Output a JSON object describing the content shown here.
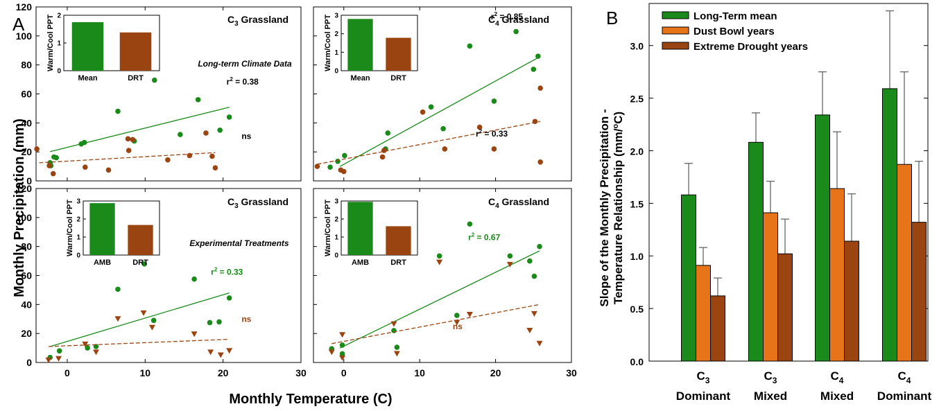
{
  "panel_labels": {
    "a": "A",
    "b": "B"
  },
  "shared_axes": {
    "ylabel": "Monthly Precipitation (mm)",
    "xlabel": "Monthly Temperature (C)"
  },
  "panel_b": {
    "ylabel_line1": "Slope of the Monthly Precipitation -",
    "ylabel_line2": "Temperature Relationship (mm/",
    "ylabel_sup": "o",
    "ylabel_end": "C)",
    "cat_line1": [
      {
        "main": "C",
        "sub": "3"
      },
      {
        "main": "C",
        "sub": "3"
      },
      {
        "main": "C",
        "sub": "4"
      },
      {
        "main": "C",
        "sub": "4"
      }
    ],
    "cat_line2": [
      "Dominant",
      "Mixed",
      "Mixed",
      "Dominant"
    ]
  },
  "chart_data": [
    {
      "id": "a1",
      "type": "scatter",
      "title_main": "C",
      "title_sub": "3",
      "title_rest": " Grassland",
      "note": "Long-term Climate Data",
      "xlim": [
        -4,
        30
      ],
      "ylim": [
        0,
        120
      ],
      "xticks": [
        0,
        10,
        20,
        30
      ],
      "yticks": [
        0,
        20,
        40,
        60,
        80,
        100,
        120
      ],
      "series": [
        {
          "color": "#1a8a1a",
          "marker": "circle",
          "points": [
            [
              -2.2,
              12.5
            ],
            [
              -2.1,
              10.5
            ],
            [
              -1.7,
              16.5
            ],
            [
              -1.4,
              16
            ],
            [
              1.8,
              25.5
            ],
            [
              2.2,
              26.5
            ],
            [
              6.5,
              48
            ],
            [
              8.6,
              27.5
            ],
            [
              11.2,
              69.5
            ],
            [
              14.5,
              32
            ],
            [
              16.8,
              56
            ],
            [
              19.6,
              35
            ],
            [
              20.8,
              44
            ]
          ],
          "fit": [
            [
              -2.2,
              20.2
            ],
            [
              20.8,
              50.8
            ]
          ],
          "annotation": {
            "text": "r",
            "sup": "2",
            "rest": " = 0.38",
            "x": 22.5,
            "y": 66.5
          }
        },
        {
          "color": "#9a4511",
          "marker": "circle",
          "points": [
            [
              -3.9,
              22
            ],
            [
              -2.3,
              10.5
            ],
            [
              -1.8,
              5
            ],
            [
              2.3,
              9.5
            ],
            [
              5.3,
              7.5
            ],
            [
              7.8,
              29
            ],
            [
              7.9,
              21
            ],
            [
              8.4,
              28.5
            ],
            [
              12.9,
              14.5
            ],
            [
              15.7,
              17.5
            ],
            [
              17.8,
              33
            ],
            [
              18.6,
              17
            ],
            [
              19,
              9
            ]
          ],
          "fit": [
            [
              -3.6,
              12.5
            ],
            [
              19,
              19.5
            ]
          ],
          "dashed": true,
          "annotation": {
            "text": "ns",
            "x": 23,
            "y": 29
          }
        }
      ],
      "inset": {
        "ylabel": "Warm/Cool PPT",
        "ylim": [
          0,
          2
        ],
        "yticks": [
          0,
          1,
          2
        ],
        "categories": [
          "Mean",
          "DRT"
        ],
        "values": [
          1.75,
          1.38
        ],
        "colors": [
          "#1a8a1a",
          "#9a4511"
        ]
      }
    },
    {
      "id": "a2",
      "type": "scatter",
      "title_main": "C",
      "title_sub": "4",
      "title_rest": " Grassland",
      "xlim": [
        -4,
        30
      ],
      "ylim": [
        0,
        120
      ],
      "xticks": [
        0,
        10,
        20,
        30
      ],
      "yticks": [
        0,
        20,
        40,
        60,
        80,
        100,
        120
      ],
      "series": [
        {
          "color": "#1a8a1a",
          "marker": "circle",
          "points": [
            [
              -1.8,
              9.5
            ],
            [
              -0.8,
              13.5
            ],
            [
              0.1,
              17.5
            ],
            [
              5.5,
              22
            ],
            [
              5.8,
              33
            ],
            [
              11.5,
              51
            ],
            [
              13.1,
              36
            ],
            [
              16.6,
              93
            ],
            [
              19.8,
              55
            ],
            [
              22.7,
              103
            ],
            [
              25,
              77
            ],
            [
              25.6,
              86
            ]
          ],
          "fit": [
            [
              -0.5,
              10
            ],
            [
              25.6,
              85
            ]
          ],
          "annotation": {
            "text": "r",
            "sup": "2",
            "rest": " = 0.85",
            "x": 21.5,
            "y": 111.5
          }
        },
        {
          "color": "#9a4511",
          "marker": "circle",
          "points": [
            [
              -3.5,
              10
            ],
            [
              -0.4,
              7.5
            ],
            [
              0,
              6.5
            ],
            [
              5.1,
              16.5
            ],
            [
              5.3,
              21
            ],
            [
              10.4,
              47.5
            ],
            [
              13.3,
              22
            ],
            [
              17.9,
              37
            ],
            [
              19.8,
              22
            ],
            [
              25.2,
              41
            ],
            [
              25.9,
              64
            ],
            [
              25.9,
              13
            ]
          ],
          "fit": [
            [
              -3.5,
              11.5
            ],
            [
              25.9,
              41
            ]
          ],
          "dashed": true,
          "annotation": {
            "text": "r",
            "sup": "2",
            "rest": " = 0.33",
            "x": 19.5,
            "y": 30.5
          }
        }
      ],
      "inset": {
        "ylabel": "Warm/Cool PPT",
        "ylim": [
          0,
          3
        ],
        "yticks": [
          0,
          1,
          2,
          3
        ],
        "categories": [
          "Mean",
          "DRT"
        ],
        "values": [
          2.8,
          1.78
        ],
        "colors": [
          "#1a8a1a",
          "#9a4511"
        ]
      }
    },
    {
      "id": "a3",
      "type": "scatter",
      "title_main": "C",
      "title_sub": "3",
      "title_rest": " Grassland",
      "note": "Experimental Treatments",
      "xlim": [
        -4,
        30
      ],
      "ylim": [
        0,
        120
      ],
      "xticks": [
        0,
        10,
        20,
        30
      ],
      "yticks": [
        0,
        20,
        40,
        60,
        80,
        100,
        120
      ],
      "series": [
        {
          "color": "#1a8a1a",
          "marker": "circle",
          "points": [
            [
              -2.2,
              3.5
            ],
            [
              -1,
              8
            ],
            [
              2.6,
              10
            ],
            [
              3.7,
              11
            ],
            [
              6.5,
              50.5
            ],
            [
              9.9,
              68
            ],
            [
              11.1,
              29
            ],
            [
              16.3,
              57.5
            ],
            [
              18.3,
              27.5
            ],
            [
              19.5,
              28
            ],
            [
              20.8,
              44.5
            ]
          ],
          "fit": [
            [
              -2.2,
              11
            ],
            [
              20.8,
              48
            ]
          ],
          "annotation": {
            "text": "r",
            "sup": "2",
            "rest": " = 0.33",
            "x": 20.5,
            "y": 60.5,
            "color": "#1a8a1a"
          }
        },
        {
          "color": "#9a4511",
          "marker": "triangle",
          "points": [
            [
              -2.4,
              1.5
            ],
            [
              -1.1,
              2.5
            ],
            [
              2.3,
              12.5
            ],
            [
              3.7,
              7
            ],
            [
              6.5,
              30
            ],
            [
              9.8,
              34
            ],
            [
              10.9,
              24
            ],
            [
              16.3,
              19.5
            ],
            [
              18.4,
              7
            ],
            [
              19.7,
              5
            ],
            [
              20.8,
              8
            ]
          ],
          "fit": [
            [
              -2.4,
              11
            ],
            [
              20.8,
              16
            ]
          ],
          "dashed": true,
          "annotation": {
            "text": "ns",
            "x": 23,
            "y": 28,
            "color": "#9a4511"
          }
        }
      ],
      "inset": {
        "ylabel": "Warm/Cool PPT",
        "ylim": [
          0,
          3
        ],
        "yticks": [
          0,
          1,
          2,
          3
        ],
        "categories": [
          "AMB",
          "DRT"
        ],
        "values": [
          2.88,
          1.67
        ],
        "colors": [
          "#1a8a1a",
          "#9a4511"
        ]
      }
    },
    {
      "id": "a4",
      "type": "scatter",
      "title_main": "C",
      "title_sub": "4",
      "title_rest": " Grassland",
      "xlim": [
        -4,
        30
      ],
      "ylim": [
        0,
        120
      ],
      "xticks": [
        0,
        10,
        20,
        30
      ],
      "yticks": [
        0,
        20,
        40,
        60,
        80,
        100,
        120
      ],
      "series": [
        {
          "color": "#1a8a1a",
          "marker": "circle",
          "points": [
            [
              -1.6,
              9.5
            ],
            [
              -0.2,
              12
            ],
            [
              -0.2,
              6
            ],
            [
              6.6,
              22
            ],
            [
              7,
              10.5
            ],
            [
              12.6,
              73.5
            ],
            [
              14.9,
              32.5
            ],
            [
              16.6,
              95.5
            ],
            [
              21.9,
              73.5
            ],
            [
              24.5,
              70
            ],
            [
              25.1,
              59.5
            ],
            [
              25.8,
              80
            ]
          ],
          "fit": [
            [
              -0.5,
              10
            ],
            [
              25.8,
              77
            ]
          ],
          "annotation": {
            "text": "r",
            "sup": "2",
            "rest": " = 0.67",
            "x": 18.5,
            "y": 84.5,
            "color": "#1a8a1a"
          }
        },
        {
          "color": "#9a4511",
          "marker": "triangle",
          "points": [
            [
              -1.6,
              7
            ],
            [
              -0.2,
              19
            ],
            [
              -0.2,
              3
            ],
            [
              6.6,
              26.5
            ],
            [
              7,
              6
            ],
            [
              12.6,
              69
            ],
            [
              14.9,
              27.5
            ],
            [
              16.6,
              33
            ],
            [
              21.9,
              67.5
            ],
            [
              24.5,
              22
            ],
            [
              25.1,
              33.5
            ],
            [
              25.8,
              13
            ]
          ],
          "fit": [
            [
              -1.6,
              13
            ],
            [
              25.8,
              40
            ]
          ],
          "dashed": true,
          "annotation": {
            "text": "ns",
            "x": 15,
            "y": 23,
            "color": "#9a4511"
          }
        }
      ],
      "inset": {
        "ylabel": "Warm/Cool PPT",
        "ylim": [
          0,
          3
        ],
        "yticks": [
          0,
          1,
          2,
          3
        ],
        "categories": [
          "AMB",
          "DRT"
        ],
        "values": [
          2.95,
          1.6
        ],
        "colors": [
          "#1a8a1a",
          "#9a4511"
        ]
      }
    },
    {
      "id": "b",
      "type": "bar",
      "ylim": [
        0,
        3.4
      ],
      "yticks": [
        0.0,
        0.5,
        1.0,
        1.5,
        2.0,
        2.5,
        3.0
      ],
      "ytick_labels": [
        "0.0",
        "0.5",
        "1.0",
        "1.5",
        "2.0",
        "2.5",
        "3.0"
      ],
      "legend_position": "top-left",
      "series": [
        {
          "name": "Long-Term mean",
          "color": "#1a8a1a",
          "values": [
            1.58,
            2.08,
            2.34,
            2.59
          ],
          "errors": [
            0.3,
            0.28,
            0.41,
            0.74
          ]
        },
        {
          "name": "Dust Bowl years",
          "color": "#e8741a",
          "values": [
            0.91,
            1.41,
            1.64,
            1.87
          ],
          "errors": [
            0.17,
            0.3,
            0.54,
            0.88
          ]
        },
        {
          "name": "Extreme Drought years",
          "color": "#9a4511",
          "values": [
            0.62,
            1.02,
            1.14,
            1.32
          ],
          "errors": [
            0.17,
            0.33,
            0.45,
            0.58
          ]
        }
      ]
    }
  ]
}
